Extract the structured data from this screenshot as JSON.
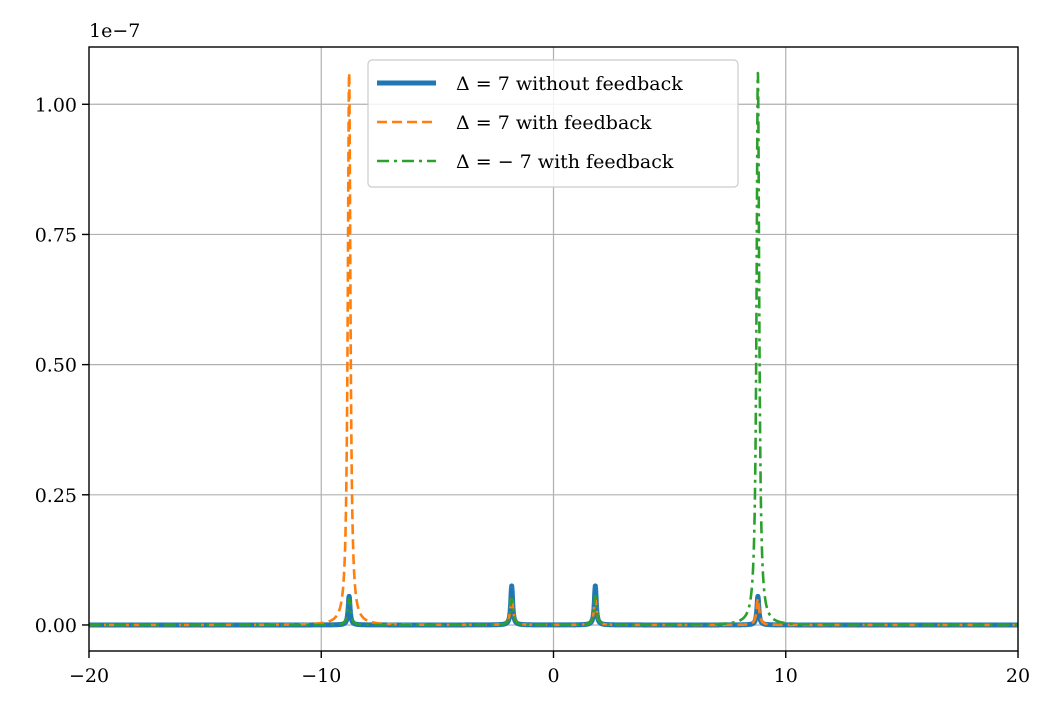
{
  "chart_data": {
    "type": "line",
    "xlim": [
      -20,
      20
    ],
    "ylim": [
      -0.05,
      1.11
    ],
    "x_ticks": [
      -20,
      -10,
      0,
      10,
      20
    ],
    "x_tick_labels": [
      "−20",
      "−10",
      "0",
      "10",
      "20"
    ],
    "y_ticks": [
      0.0,
      0.25,
      0.5,
      0.75,
      1.0
    ],
    "y_tick_labels": [
      "0.00",
      "0.25",
      "0.50",
      "0.75",
      "1.00"
    ],
    "y_offset_label": "1e−7",
    "grid": true,
    "legend_position": "top-center",
    "series": [
      {
        "name": "Δ = 7 without feedback",
        "color": "#1f77b4",
        "style": "solid",
        "peaks": [
          {
            "x": -8.8,
            "height": 0.055
          },
          {
            "x": -1.8,
            "height": 0.075
          },
          {
            "x": 1.8,
            "height": 0.075
          },
          {
            "x": 8.8,
            "height": 0.055
          }
        ],
        "peak_width": 0.05
      },
      {
        "name": "Δ = 7 with feedback",
        "color": "#ff7f0e",
        "style": "dashed",
        "peaks": [
          {
            "x": -8.8,
            "height": 1.06
          },
          {
            "x": -1.8,
            "height": 0.055
          },
          {
            "x": 1.8,
            "height": 0.05
          },
          {
            "x": 8.8,
            "height": 0.05
          }
        ],
        "peak_width": 0.07
      },
      {
        "name": "Δ = − 7 with feedback",
        "color": "#2ca02c",
        "style": "dashdot",
        "peaks": [
          {
            "x": -8.8,
            "height": 0.05
          },
          {
            "x": -1.8,
            "height": 0.05
          },
          {
            "x": 1.8,
            "height": 0.055
          },
          {
            "x": 8.8,
            "height": 1.06
          }
        ],
        "peak_width": 0.07
      }
    ]
  }
}
